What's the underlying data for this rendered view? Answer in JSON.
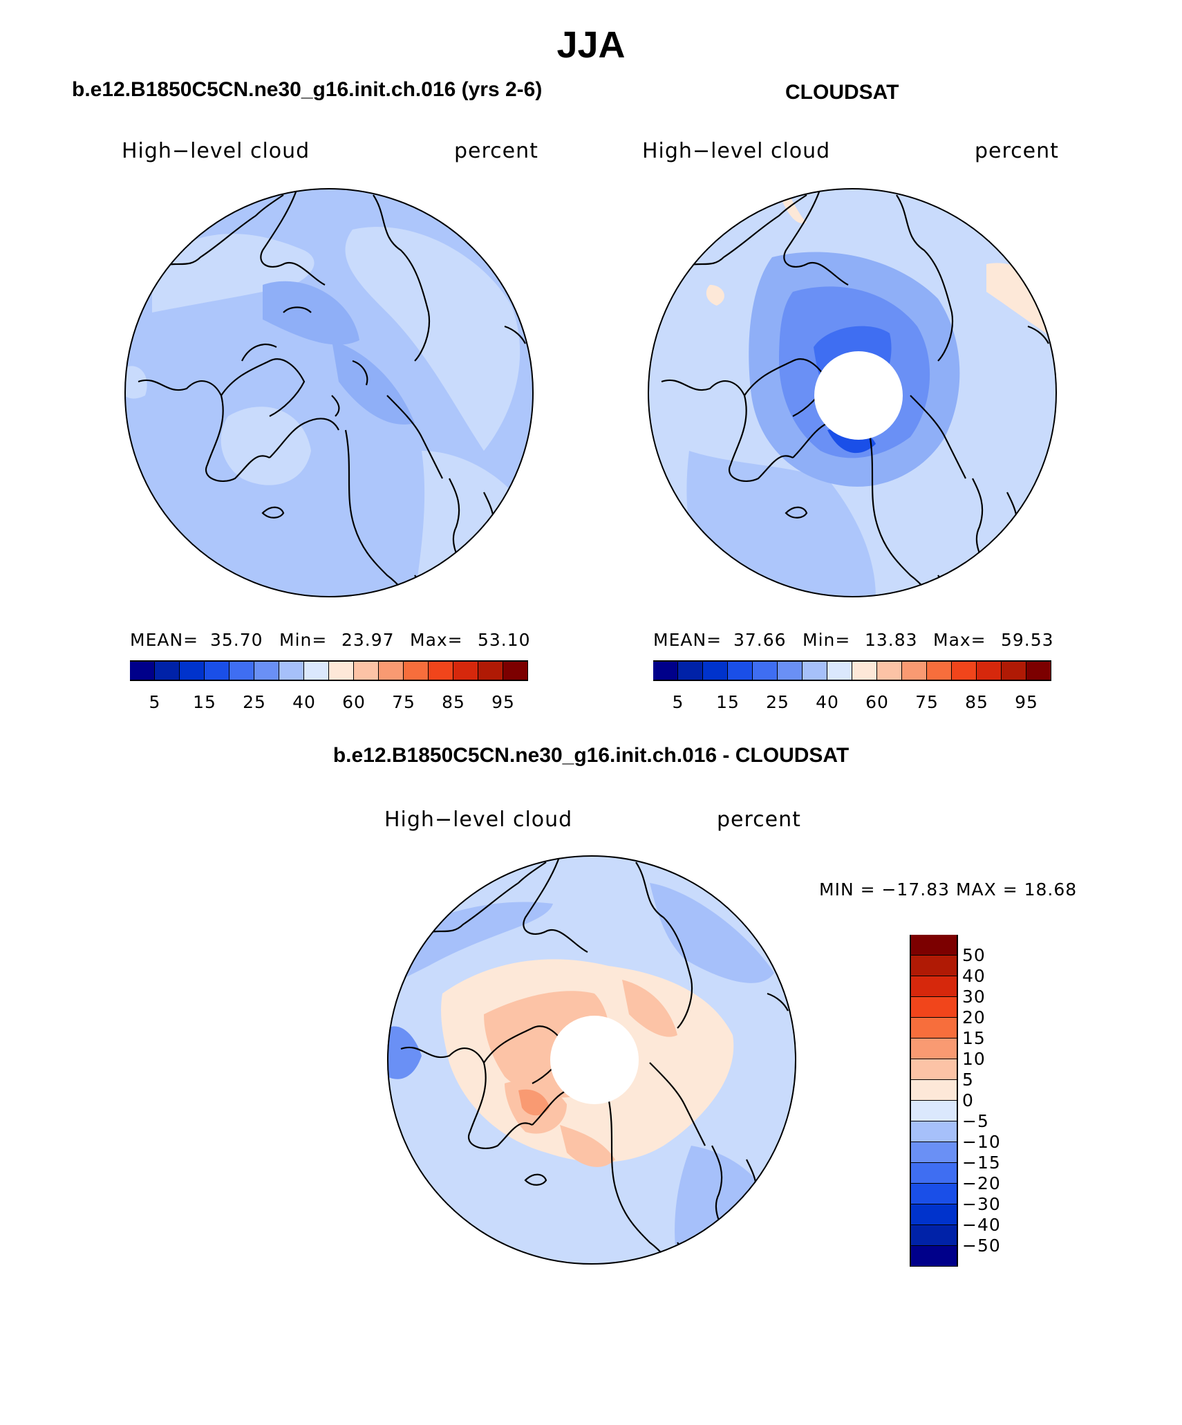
{
  "figure": {
    "title": "JJA",
    "season": "JJA"
  },
  "panels": [
    {
      "id": "model",
      "title": "b.e12.B1850C5CN.ne30_g16.init.ch.016 (yrs 2-6)",
      "left_label": "High−level cloud",
      "right_label": "percent",
      "stats": {
        "mean_label": "MEAN=",
        "mean": "35.70",
        "min_label": "Min=",
        "min": "23.97",
        "max_label": "Max=",
        "max": "53.10"
      },
      "map_fill": "#adc6fb",
      "has_polar_hole": false
    },
    {
      "id": "obs",
      "title": "CLOUDSAT",
      "left_label": "High−level cloud",
      "right_label": "percent",
      "stats": {
        "mean_label": "MEAN=",
        "mean": "37.66",
        "min_label": "Min=",
        "min": "13.83",
        "max_label": "Max=",
        "max": "59.53"
      },
      "map_fill": "#c9dbfc",
      "has_polar_hole": true
    },
    {
      "id": "diff",
      "title": "b.e12.B1850C5CN.ne30_g16.init.ch.016 - CLOUDSAT",
      "left_label": "High−level cloud",
      "right_label": "percent",
      "minmax_text": "MIN = −17.83 MAX =   18.68",
      "map_fill": "#c9dbfc",
      "has_polar_hole": true
    }
  ],
  "abs_colorbar": {
    "colors": [
      "#00008a",
      "#0022a8",
      "#0033cc",
      "#1a4fe8",
      "#3f6ef2",
      "#6a90f5",
      "#a6c0fa",
      "#dbe8fd",
      "#fde8d8",
      "#fcc3a6",
      "#f99a72",
      "#f76e3c",
      "#f1451b",
      "#d6280c",
      "#b01a05",
      "#7c0000"
    ],
    "tick_labels": [
      "5",
      "15",
      "25",
      "40",
      "60",
      "75",
      "85",
      "95"
    ],
    "tick_positions": [
      1,
      3,
      5,
      7,
      9,
      11,
      13,
      15
    ]
  },
  "diff_colorbar": {
    "colors_top_to_bottom": [
      "#7c0000",
      "#b01a05",
      "#d6280c",
      "#f1451b",
      "#f76e3c",
      "#f99a72",
      "#fcc3a6",
      "#fde8d8",
      "#dbe8fd",
      "#a6c0fa",
      "#6a90f5",
      "#3f6ef2",
      "#1a4fe8",
      "#0033cc",
      "#0022a8",
      "#00008a"
    ],
    "tick_labels_top_to_bottom": [
      "50",
      "40",
      "30",
      "20",
      "15",
      "10",
      "5",
      "0",
      "−5",
      "−10",
      "−15",
      "−20",
      "−30",
      "−40",
      "−50"
    ]
  },
  "chart_data": {
    "type": "heatmap",
    "projection": "north polar stereographic",
    "variable": "High-level cloud",
    "units": "percent",
    "panels": [
      {
        "name": "b.e12.B1850C5CN.ne30_g16.init.ch.016 (yrs 2-6)",
        "mean": 35.7,
        "min": 23.97,
        "max": 53.1
      },
      {
        "name": "CLOUDSAT",
        "mean": 37.66,
        "min": 13.83,
        "max": 59.53
      },
      {
        "name": "b.e12.B1850C5CN.ne30_g16.init.ch.016 - CLOUDSAT",
        "min": -17.83,
        "max": 18.68
      }
    ],
    "abs_levels": [
      5,
      10,
      15,
      20,
      25,
      30,
      40,
      50,
      60,
      70,
      75,
      80,
      85,
      90,
      95
    ],
    "diff_levels": [
      -50,
      -40,
      -30,
      -20,
      -15,
      -10,
      -5,
      0,
      5,
      10,
      15,
      20,
      30,
      40,
      50
    ]
  }
}
